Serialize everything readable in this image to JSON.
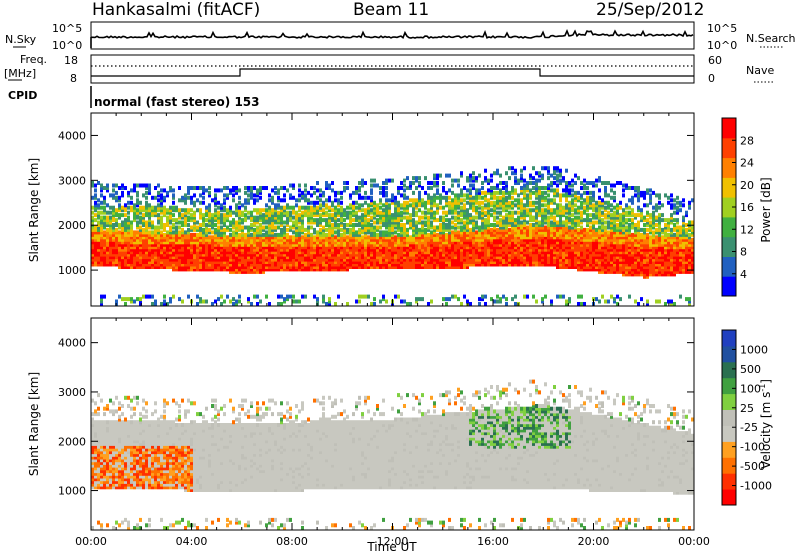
{
  "header": {
    "station": "Hankasalmi (fitACF)",
    "beam": "Beam 11",
    "date": "25/Sep/2012"
  },
  "top_panels": {
    "nsky_label": "N.Sky",
    "nsky_ticks": [
      "10^5",
      "10^0"
    ],
    "nsearch_label": "N.Search",
    "nsearch_ticks": [
      "10^5",
      "10^0"
    ],
    "freq_label_1": "Freq.",
    "freq_label_2": "[MHz]",
    "freq_ticks": [
      "18",
      "8"
    ],
    "nave_label": "Nave",
    "nave_ticks": [
      "60",
      "0"
    ],
    "cpid_label": "CPID",
    "cpid_text": "normal (fast stereo) 153"
  },
  "colors": {
    "power": [
      "#0000ff",
      "#2060c0",
      "#3a9070",
      "#40b040",
      "#a0d020",
      "#f0c000",
      "#ff8000",
      "#ff4000",
      "#ff0000"
    ],
    "velocity": [
      "#ff0000",
      "#ff3000",
      "#ff7000",
      "#ffa020",
      "#c8c8c0",
      "#c0c0b8",
      "#80d040",
      "#40a040",
      "#2a7050",
      "#2050a0",
      "#2040c0"
    ]
  },
  "chart_data": [
    {
      "type": "heatmap",
      "quantity": "Power",
      "ylabel": "Slant Range [km]",
      "yticks": [
        "1000",
        "2000",
        "3000",
        "4000"
      ],
      "ylim": [
        200,
        4500
      ],
      "xlim": [
        0,
        24
      ],
      "colorbar_label": "Power [dB]",
      "colorbar_ticks": [
        "4",
        "8",
        "12",
        "16",
        "20",
        "24",
        "28"
      ],
      "colorbar_range": [
        0,
        32
      ],
      "bands": [
        {
          "t": [
            0,
            6,
            12,
            18,
            22,
            24
          ],
          "lower": [
            1050,
            900,
            1000,
            1050,
            800,
            900
          ],
          "upper": [
            1600,
            1500,
            1500,
            1700,
            1500,
            1400
          ],
          "level": "high"
        },
        {
          "t": [
            0,
            6,
            12,
            18,
            24
          ],
          "lower": [
            1600,
            1450,
            1450,
            1700,
            1400
          ],
          "upper": [
            2400,
            2300,
            2500,
            2800,
            2000
          ],
          "level": "mid"
        }
      ]
    },
    {
      "type": "heatmap",
      "quantity": "Velocity",
      "ylabel": "Slant Range [km]",
      "yticks": [
        "1000",
        "2000",
        "3000",
        "4000"
      ],
      "ylim": [
        200,
        4500
      ],
      "xlim": [
        0,
        24
      ],
      "xticks": [
        "00:00",
        "04:00",
        "08:00",
        "12:00",
        "16:00",
        "20:00",
        "00:00"
      ],
      "xlabel": "Time UT",
      "colorbar_label": "Velocity [m s^-1]",
      "colorbar_ticks": [
        "1000",
        "500",
        "100",
        "25",
        "-25",
        "-100",
        "-500",
        "-1000"
      ],
      "bands": [
        {
          "t": [
            0,
            6,
            12,
            18,
            24
          ],
          "lower": [
            1000,
            950,
            1000,
            1000,
            900
          ],
          "upper": [
            2400,
            2300,
            2400,
            2700,
            2100
          ],
          "level": "ground"
        }
      ]
    }
  ]
}
